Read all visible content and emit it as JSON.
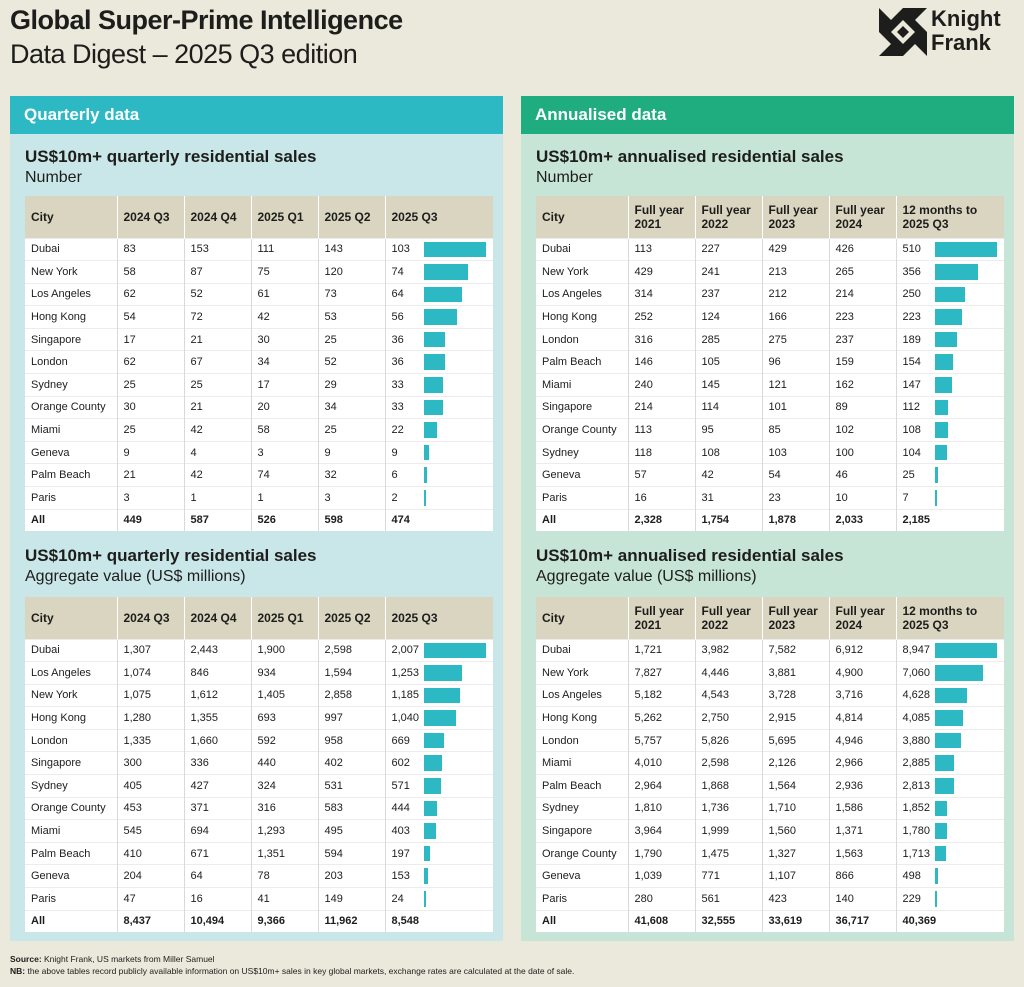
{
  "header": {
    "title": "Global Super-Prime Intelligence",
    "subtitle": "Data Digest – 2025 Q3 edition",
    "logo_line1": "Knight",
    "logo_line2": "Frank"
  },
  "colors": {
    "teal": "#2db9c4",
    "green": "#1fac7f",
    "bar": "#2db9c4"
  },
  "quarterly": {
    "panel_title": "Quarterly data",
    "headers": [
      "City",
      "2024 Q3",
      "2024 Q4",
      "2025 Q1",
      "2025 Q2",
      "2025 Q3"
    ],
    "number": {
      "title": "US$10m+ quarterly residential sales",
      "subtitle": "Number",
      "bar_max": 103,
      "rows": [
        [
          "Dubai",
          "83",
          "153",
          "111",
          "143",
          "103"
        ],
        [
          "New York",
          "58",
          "87",
          "75",
          "120",
          "74"
        ],
        [
          "Los Angeles",
          "62",
          "52",
          "61",
          "73",
          "64"
        ],
        [
          "Hong Kong",
          "54",
          "72",
          "42",
          "53",
          "56"
        ],
        [
          "Singapore",
          "17",
          "21",
          "30",
          "25",
          "36"
        ],
        [
          "London",
          "62",
          "67",
          "34",
          "52",
          "36"
        ],
        [
          "Sydney",
          "25",
          "25",
          "17",
          "29",
          "33"
        ],
        [
          "Orange County",
          "30",
          "21",
          "20",
          "34",
          "33"
        ],
        [
          "Miami",
          "25",
          "42",
          "58",
          "25",
          "22"
        ],
        [
          "Geneva",
          "9",
          "4",
          "3",
          "9",
          "9"
        ],
        [
          "Palm Beach",
          "21",
          "42",
          "74",
          "32",
          "6"
        ],
        [
          "Paris",
          "3",
          "1",
          "1",
          "3",
          "2"
        ]
      ],
      "total": [
        "All",
        "449",
        "587",
        "526",
        "598",
        "474"
      ]
    },
    "value": {
      "title": "US$10m+ quarterly residential sales",
      "subtitle": "Aggregate value (US$ millions)",
      "bar_max": 2007,
      "rows": [
        [
          "Dubai",
          "1,307",
          "2,443",
          "1,900",
          "2,598",
          "2,007"
        ],
        [
          "Los Angeles",
          "1,074",
          "846",
          "934",
          "1,594",
          "1,253"
        ],
        [
          "New York",
          "1,075",
          "1,612",
          "1,405",
          "2,858",
          "1,185"
        ],
        [
          "Hong Kong",
          "1,280",
          "1,355",
          "693",
          "997",
          "1,040"
        ],
        [
          "London",
          "1,335",
          "1,660",
          "592",
          "958",
          "669"
        ],
        [
          "Singapore",
          "300",
          "336",
          "440",
          "402",
          "602"
        ],
        [
          "Sydney",
          "405",
          "427",
          "324",
          "531",
          "571"
        ],
        [
          "Orange County",
          "453",
          "371",
          "316",
          "583",
          "444"
        ],
        [
          "Miami",
          "545",
          "694",
          "1,293",
          "495",
          "403"
        ],
        [
          "Palm Beach",
          "410",
          "671",
          "1,351",
          "594",
          "197"
        ],
        [
          "Geneva",
          "204",
          "64",
          "78",
          "203",
          "153"
        ],
        [
          "Paris",
          "47",
          "16",
          "41",
          "149",
          "24"
        ]
      ],
      "total": [
        "All",
        "8,437",
        "10,494",
        "9,366",
        "11,962",
        "8,548"
      ]
    }
  },
  "annualised": {
    "panel_title": "Annualised data",
    "headers": [
      "City",
      "Full year 2021",
      "Full year 2022",
      "Full year 2023",
      "Full year 2024",
      "12 months to 2025 Q3"
    ],
    "number": {
      "title": "US$10m+ annualised residential sales",
      "subtitle": "Number",
      "bar_max": 510,
      "rows": [
        [
          "Dubai",
          "113",
          "227",
          "429",
          "426",
          "510"
        ],
        [
          "New York",
          "429",
          "241",
          "213",
          "265",
          "356"
        ],
        [
          "Los Angeles",
          "314",
          "237",
          "212",
          "214",
          "250"
        ],
        [
          "Hong Kong",
          "252",
          "124",
          "166",
          "223",
          "223"
        ],
        [
          "London",
          "316",
          "285",
          "275",
          "237",
          "189"
        ],
        [
          "Palm Beach",
          "146",
          "105",
          "96",
          "159",
          "154"
        ],
        [
          "Miami",
          "240",
          "145",
          "121",
          "162",
          "147"
        ],
        [
          "Singapore",
          "214",
          "114",
          "101",
          "89",
          "112"
        ],
        [
          "Orange County",
          "113",
          "95",
          "85",
          "102",
          "108"
        ],
        [
          "Sydney",
          "118",
          "108",
          "103",
          "100",
          "104"
        ],
        [
          "Geneva",
          "57",
          "42",
          "54",
          "46",
          "25"
        ],
        [
          "Paris",
          "16",
          "31",
          "23",
          "10",
          "7"
        ]
      ],
      "total": [
        "All",
        "2,328",
        "1,754",
        "1,878",
        "2,033",
        "2,185"
      ]
    },
    "value": {
      "title": "US$10m+ annualised residential sales",
      "subtitle": "Aggregate value (US$ millions)",
      "bar_max": 8947,
      "rows": [
        [
          "Dubai",
          "1,721",
          "3,982",
          "7,582",
          "6,912",
          "8,947"
        ],
        [
          "New York",
          "7,827",
          "4,446",
          "3,881",
          "4,900",
          "7,060"
        ],
        [
          "Los Angeles",
          "5,182",
          "4,543",
          "3,728",
          "3,716",
          "4,628"
        ],
        [
          "Hong Kong",
          "5,262",
          "2,750",
          "2,915",
          "4,814",
          "4,085"
        ],
        [
          "London",
          "5,757",
          "5,826",
          "5,695",
          "4,946",
          "3,880"
        ],
        [
          "Miami",
          "4,010",
          "2,598",
          "2,126",
          "2,966",
          "2,885"
        ],
        [
          "Palm Beach",
          "2,964",
          "1,868",
          "1,564",
          "2,936",
          "2,813"
        ],
        [
          "Sydney",
          "1,810",
          "1,736",
          "1,710",
          "1,586",
          "1,852"
        ],
        [
          "Singapore",
          "3,964",
          "1,999",
          "1,560",
          "1,371",
          "1,780"
        ],
        [
          "Orange County",
          "1,790",
          "1,475",
          "1,327",
          "1,563",
          "1,713"
        ],
        [
          "Geneva",
          "1,039",
          "771",
          "1,107",
          "866",
          "498"
        ],
        [
          "Paris",
          "280",
          "561",
          "423",
          "140",
          "229"
        ]
      ],
      "total": [
        "All",
        "41,608",
        "32,555",
        "33,619",
        "36,717",
        "40,369"
      ]
    }
  },
  "footer": {
    "source_label": "Source:",
    "source_text": " Knight Frank, US markets from Miller Samuel",
    "nb_label": "NB:",
    "nb_text": " the above tables record publicly available information on US$10m+ sales in key global markets, exchange rates are calculated at the date of sale."
  }
}
